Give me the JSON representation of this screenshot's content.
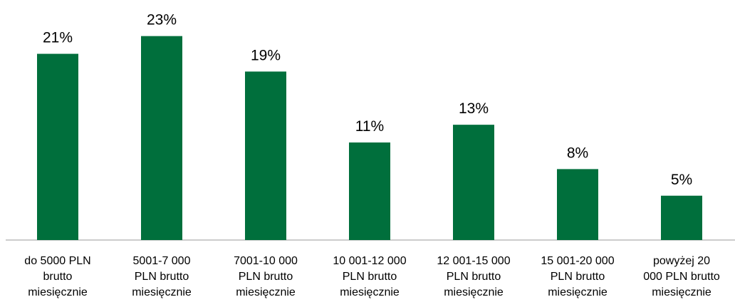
{
  "chart_data": {
    "type": "bar",
    "categories": [
      "do 5000 PLN\nbrutto\nmiesięcznie",
      "5001-7 000\nPLN brutto\nmiesięcznie",
      "7001-10 000\nPLN brutto\nmiesięcznie",
      "10 001-12 000\nPLN brutto\nmiesięcznie",
      "12 001-15 000\nPLN brutto\nmiesięcznie",
      "15 001-20 000\nPLN brutto\nmiesięcznie",
      "powyżej 20\n000 PLN brutto\nmiesięcznie"
    ],
    "values": [
      21,
      23,
      19,
      11,
      13,
      8,
      5
    ],
    "value_labels": [
      "21%",
      "23%",
      "19%",
      "11%",
      "13%",
      "8%",
      "5%"
    ],
    "color": "#006f3c"
  }
}
